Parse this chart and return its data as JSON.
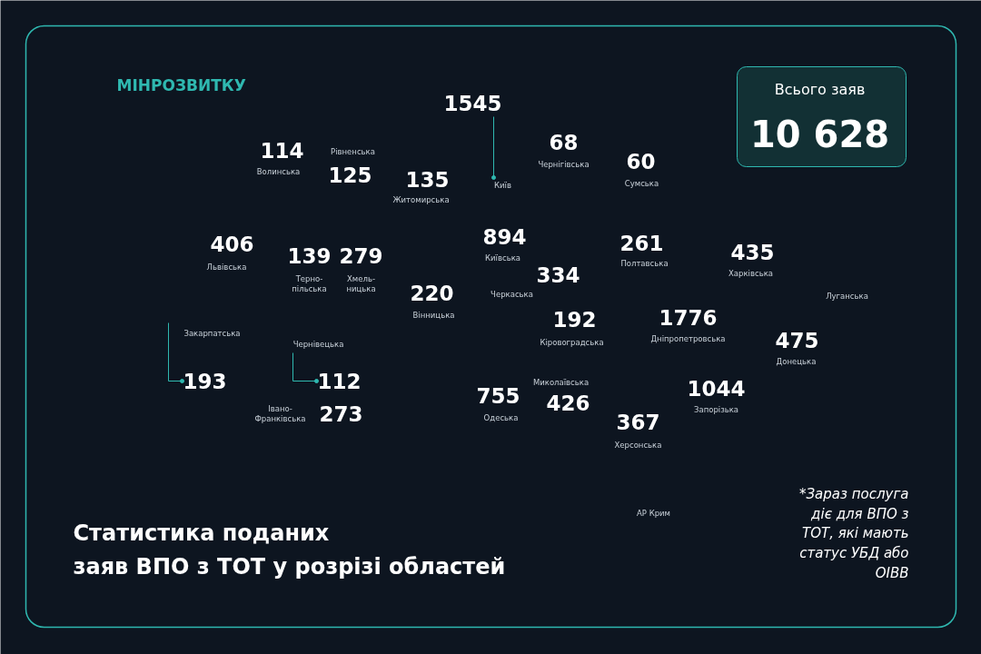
{
  "chart_data": {
    "type": "other",
    "title": "Статистика поданих\nзаяв ВПО з ТОТ у розрізі областей",
    "categories": [
      "Волинська",
      "Рівненська",
      "Житомирська",
      "Київ",
      "Чернігівська",
      "Сумська",
      "Львівська",
      "Терно-\nпільська",
      "Хмель-\nницька",
      "Київська",
      "Вінницька",
      "Черкаська",
      "Полтавська",
      "Харківська",
      "Луганська",
      "Закарпатська",
      "Івано-\nФранківська",
      "Чернівецька",
      "Кіровоградська",
      "Дніпропетровська",
      "Донецька",
      "Одеська",
      "Миколаївська",
      "Херсонська",
      "Запорізька",
      "АР Крим"
    ],
    "values": [
      114,
      125,
      135,
      1545,
      68,
      60,
      406,
      139,
      279,
      894,
      220,
      334,
      261,
      435,
      null,
      193,
      273,
      112,
      192,
      1776,
      475,
      755,
      426,
      367,
      1044,
      null
    ],
    "data_labels": true,
    "annotations": [
      "МІНРОЗВИТКУ",
      "Всього заяв",
      "10 628",
      "*Зараз послуга\nдіє для ВПО з\nТОТ, які мають\nстатус УБД або\nОІВВ"
    ]
  }
}
